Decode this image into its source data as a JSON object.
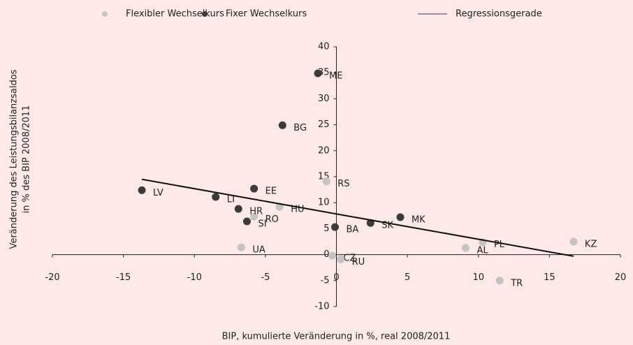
{
  "chart_data": {
    "type": "scatter",
    "xlabel": "BIP, kumulierte Veränderung in %, real 2008/2011",
    "ylabel": [
      "Veränderung des Leistungsbilanzsaldos",
      "in % des BIP 2008/2011"
    ],
    "xlim": [
      -20,
      20
    ],
    "ylim": [
      -10,
      40
    ],
    "xticks": [
      -20,
      -15,
      -10,
      -5,
      0,
      5,
      10,
      15,
      20
    ],
    "yticks": [
      -10,
      -5,
      0,
      5,
      10,
      15,
      20,
      25,
      30,
      35,
      40
    ],
    "grid": false,
    "series": [
      {
        "name": "Flexibler Wechselkurs",
        "color": "#c4c4c4",
        "labels": [
          "RS",
          "HU",
          "RO",
          "UA",
          "CZ",
          "RU",
          "AL",
          "PL",
          "KZ",
          "TR"
        ],
        "x": [
          -0.7,
          -4.0,
          -5.8,
          -6.7,
          -0.3,
          0.3,
          9.1,
          10.3,
          16.7,
          11.5
        ],
        "values": [
          14.1,
          9.2,
          7.3,
          1.4,
          -0.2,
          -0.9,
          1.3,
          2.4,
          2.5,
          -5.0
        ]
      },
      {
        "name": "Fixer Wechselkurs",
        "color": "#3b3b3b",
        "labels": [
          "ME",
          "BG",
          "EE",
          "LV",
          "LT",
          "HR",
          "SI",
          "BA",
          "SK",
          "MK"
        ],
        "x": [
          -1.3,
          -3.8,
          -5.8,
          -13.7,
          -8.5,
          -6.9,
          -6.3,
          -0.1,
          2.4,
          4.5
        ],
        "values": [
          34.9,
          24.9,
          12.7,
          12.4,
          11.1,
          8.8,
          6.4,
          5.3,
          6.1,
          7.2
        ]
      },
      {
        "name": "Regressionsgerade",
        "color": "#111111",
        "x": [
          -13.7,
          16.7
        ],
        "values": [
          14.5,
          -0.3
        ]
      }
    ]
  }
}
